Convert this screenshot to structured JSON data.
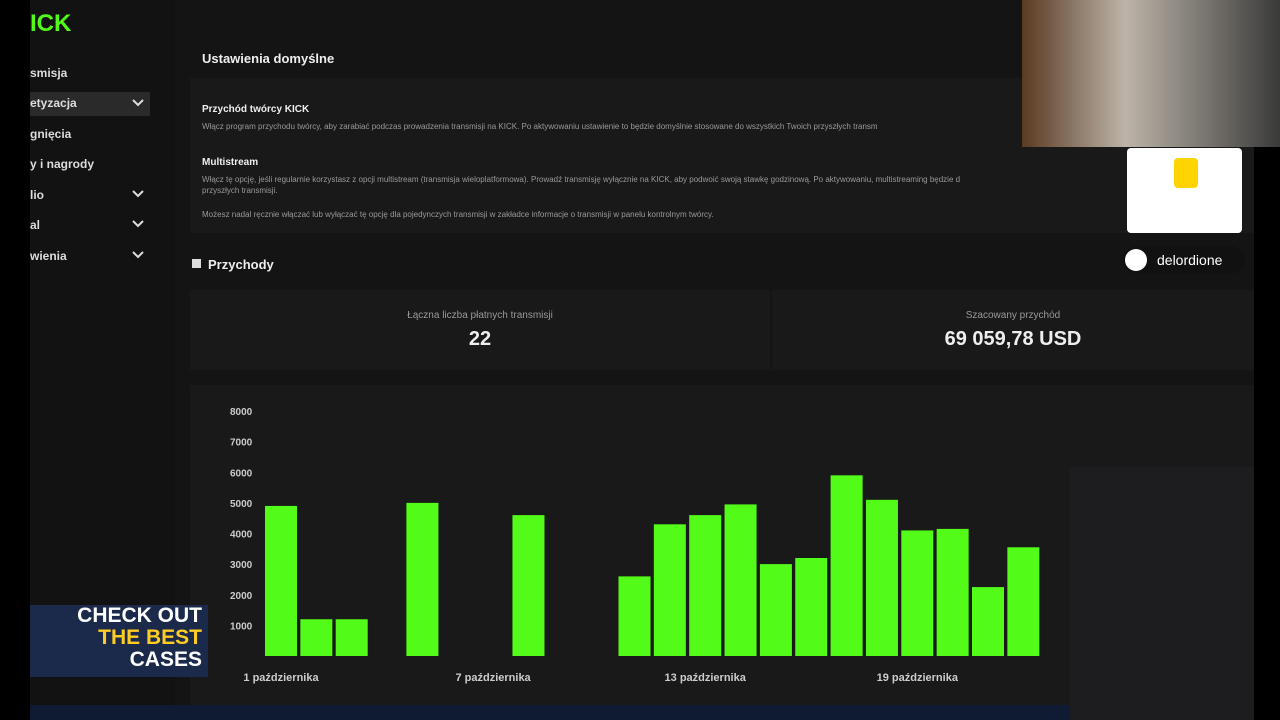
{
  "logo": "ICK",
  "sidebar": {
    "items": [
      "smisja",
      "etyzacja",
      "gnięcia",
      "y i nagrody",
      "lio",
      "al",
      "wienia"
    ]
  },
  "header": {
    "title": "Ustawienia domyślne"
  },
  "settings": [
    {
      "title": "Przychód twórcy KICK",
      "description": "Włącz program przychodu twórcy, aby zarabiać podczas prowadzenia transmisji na KICK. Po aktywowaniu ustawienie to będzie domyślnie stosowane do wszystkich Twoich przyszłych transm"
    },
    {
      "title": "Multistream",
      "description": "Włącz tę opcję, jeśli regularnie korzystasz z opcji multistream (transmisja wieloplatformowa). Prowadź transmisję wyłącznie na KICK, aby podwoić swoją stawkę godzinową. Po aktywowaniu, multistreaming będzie d",
      "description_2": "przyszłych transmisji.",
      "note": "Możesz nadal ręcznie włączać lub wyłączać tę opcję dla pojedynczych transmisji w zakładce informacje o transmisji w panelu kontrolnym twórcy."
    }
  ],
  "revenue": {
    "title": "Przychody",
    "stats": [
      {
        "label": "Łączna liczba płatnych transmisji",
        "value": "22"
      },
      {
        "label": "Szacowany przychód",
        "value": "69 059,78 USD"
      }
    ]
  },
  "chart_data": {
    "type": "bar",
    "color": "#53fc18",
    "categories": [
      "1 października",
      null,
      null,
      null,
      null,
      null,
      "7 października",
      null,
      null,
      null,
      null,
      null,
      "13 października",
      null,
      null,
      null,
      null,
      null,
      "19 października",
      null,
      null,
      null
    ],
    "values": [
      4900,
      1200,
      1200,
      0,
      5000,
      0,
      0,
      4600,
      0,
      0,
      2600,
      4300,
      4600,
      4950,
      3000,
      3200,
      5900,
      5100,
      4100,
      4150,
      2250,
      3550
    ],
    "ylim": [
      0,
      8000
    ],
    "yticks": [
      1000,
      2000,
      3000,
      4000,
      5000,
      6000,
      7000,
      8000
    ]
  },
  "overlay": {
    "username": "delordione",
    "ad": [
      "CHECK OUT",
      "THE BEST",
      "CASES"
    ]
  }
}
